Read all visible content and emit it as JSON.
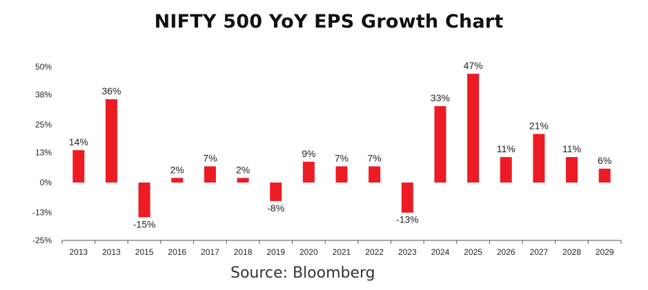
{
  "chart_data": {
    "type": "bar",
    "title": "NIFTY 500 YoY EPS Growth Chart",
    "xlabel": "",
    "ylabel": "",
    "categories": [
      "2013",
      "2013",
      "2015",
      "2016",
      "2017",
      "2018",
      "2019",
      "2020",
      "2021",
      "2022",
      "2023",
      "2024",
      "2025",
      "2026",
      "2027",
      "2028",
      "2029"
    ],
    "values": [
      14,
      36,
      -15,
      2,
      7,
      2,
      -8,
      9,
      7,
      7,
      -13,
      33,
      47,
      11,
      21,
      11,
      6
    ],
    "data_labels": [
      "14%",
      "36%",
      "-15%",
      "2%",
      "7%",
      "2%",
      "-8%",
      "9%",
      "7%",
      "7%",
      "-13%",
      "33%",
      "47%",
      "11%",
      "21%",
      "11%",
      "6%"
    ],
    "yticks": [
      50,
      38,
      25,
      13,
      0,
      -13,
      -25
    ],
    "ytick_labels": [
      "50%",
      "38%",
      "25%",
      "13%",
      "0%",
      "-13%",
      "-25%"
    ],
    "ylim": [
      -25,
      50
    ],
    "bar_color": "#ed1c24",
    "grid": false,
    "legend": "none"
  },
  "source": "Source: Bloomberg"
}
